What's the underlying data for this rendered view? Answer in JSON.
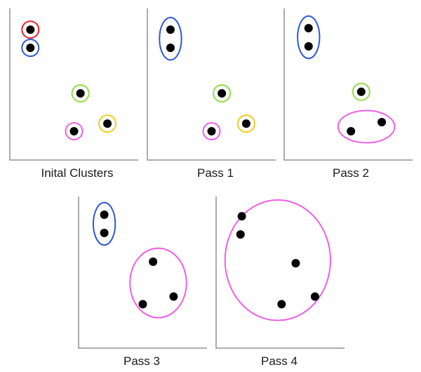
{
  "colors": {
    "red": "#e8262b",
    "blue": "#2e57d9",
    "green": "#8fdc4c",
    "yellow": "#f2cc1e",
    "magenta": "#ef5fe6",
    "point": "#000000",
    "axis": "#7f7f7f"
  },
  "panels": [
    {
      "caption": "Inital Clusters",
      "points": [
        [
          0.16,
          0.86
        ],
        [
          0.16,
          0.74
        ],
        [
          0.55,
          0.44
        ],
        [
          0.76,
          0.24
        ],
        [
          0.5,
          0.19
        ]
      ],
      "clusters": [
        {
          "color": "red",
          "members": [
            0
          ]
        },
        {
          "color": "blue",
          "members": [
            1
          ]
        },
        {
          "color": "green",
          "members": [
            2
          ]
        },
        {
          "color": "yellow",
          "members": [
            3
          ]
        },
        {
          "color": "magenta",
          "members": [
            4
          ]
        }
      ]
    },
    {
      "caption": "Pass 1",
      "points": [
        [
          0.18,
          0.86
        ],
        [
          0.18,
          0.74
        ],
        [
          0.58,
          0.44
        ],
        [
          0.77,
          0.24
        ],
        [
          0.5,
          0.19
        ]
      ],
      "clusters": [
        {
          "color": "blue",
          "members": [
            0,
            1
          ]
        },
        {
          "color": "green",
          "members": [
            2
          ]
        },
        {
          "color": "yellow",
          "members": [
            3
          ]
        },
        {
          "color": "magenta",
          "members": [
            4
          ]
        }
      ]
    },
    {
      "caption": "Pass 2",
      "points": [
        [
          0.19,
          0.87
        ],
        [
          0.19,
          0.75
        ],
        [
          0.6,
          0.45
        ],
        [
          0.76,
          0.25
        ],
        [
          0.52,
          0.19
        ]
      ],
      "clusters": [
        {
          "color": "blue",
          "members": [
            0,
            1
          ]
        },
        {
          "color": "green",
          "members": [
            2
          ]
        },
        {
          "color": "magenta",
          "members": [
            3,
            4
          ]
        }
      ]
    },
    {
      "caption": "Pass 3",
      "points": [
        [
          0.2,
          0.88
        ],
        [
          0.2,
          0.76
        ],
        [
          0.58,
          0.57
        ],
        [
          0.74,
          0.34
        ],
        [
          0.5,
          0.29
        ]
      ],
      "clusters": [
        {
          "color": "blue",
          "members": [
            0,
            1
          ]
        },
        {
          "color": "magenta",
          "members": [
            2,
            3,
            4
          ]
        }
      ]
    },
    {
      "caption": "Pass 4",
      "points": [
        [
          0.2,
          0.87
        ],
        [
          0.19,
          0.75
        ],
        [
          0.62,
          0.56
        ],
        [
          0.77,
          0.34
        ],
        [
          0.51,
          0.29
        ]
      ],
      "clusters": [
        {
          "color": "magenta",
          "members": [
            0,
            1,
            2,
            3,
            4
          ]
        }
      ]
    }
  ]
}
